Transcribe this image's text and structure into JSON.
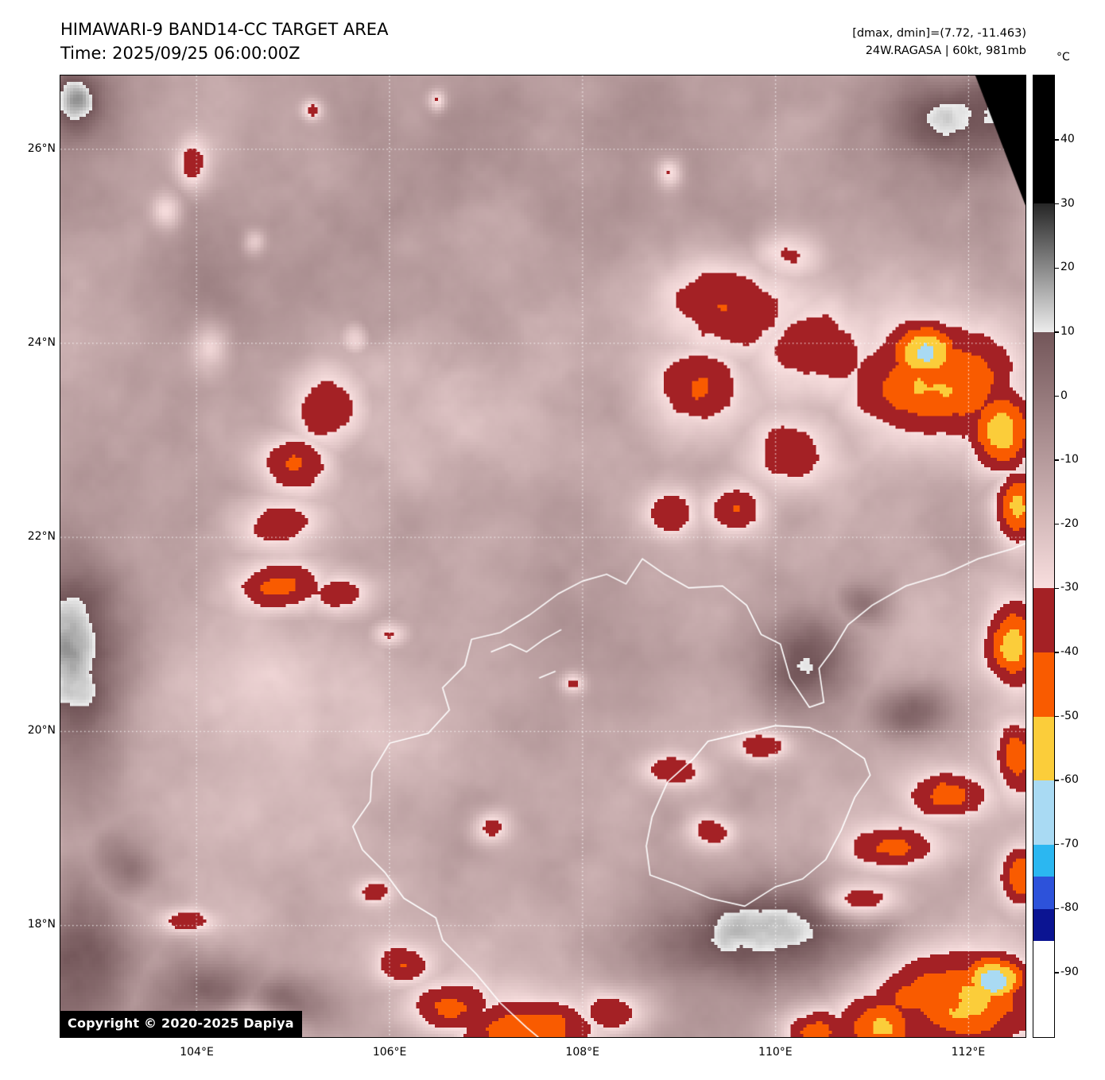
{
  "header": {
    "title": "HIMAWARI-9 BAND14-CC TARGET AREA",
    "time_line": "Time: 2025/09/25 06:00:00Z",
    "dmax_dmin": "[dmax, dmin]=(7.72, -11.463)",
    "storm_info": "24W.RAGASA | 60kt, 981mb"
  },
  "colorbar": {
    "unit": "°C",
    "domain": [
      50,
      -100
    ],
    "ticks": [
      {
        "v": 40,
        "label": "40"
      },
      {
        "v": 30,
        "label": "30"
      },
      {
        "v": 20,
        "label": "20"
      },
      {
        "v": 10,
        "label": "10"
      },
      {
        "v": 0,
        "label": "0"
      },
      {
        "v": -10,
        "label": "-10"
      },
      {
        "v": -20,
        "label": "-20"
      },
      {
        "v": -30,
        "label": "-30"
      },
      {
        "v": -40,
        "label": "-40"
      },
      {
        "v": -50,
        "label": "-50"
      },
      {
        "v": -60,
        "label": "-60"
      },
      {
        "v": -70,
        "label": "-70"
      },
      {
        "v": -80,
        "label": "-80"
      },
      {
        "v": -90,
        "label": "-90"
      }
    ],
    "segments": [
      {
        "from": 50,
        "to": 30,
        "c": [
          "#000000",
          "#000000"
        ]
      },
      {
        "from": 30,
        "to": 10,
        "c": [
          "#262626",
          "#ececec"
        ]
      },
      {
        "from": 10,
        "to": -30,
        "c": [
          "#735659",
          "#f8dede"
        ]
      },
      {
        "from": -30,
        "to": -40,
        "c": [
          "#a42125",
          "#a42125"
        ]
      },
      {
        "from": -40,
        "to": -50,
        "c": [
          "#f95b00",
          "#f95b00"
        ]
      },
      {
        "from": -50,
        "to": -60,
        "c": [
          "#fbcd3a",
          "#fbcd3a"
        ]
      },
      {
        "from": -60,
        "to": -70,
        "c": [
          "#a9daf3",
          "#a9daf3"
        ]
      },
      {
        "from": -70,
        "to": -75,
        "c": [
          "#2bb7f1",
          "#2bb7f1"
        ]
      },
      {
        "from": -75,
        "to": -80,
        "c": [
          "#2d52da",
          "#2d52da"
        ]
      },
      {
        "from": -80,
        "to": -85,
        "c": [
          "#0b1492",
          "#0b1492"
        ]
      },
      {
        "from": -85,
        "to": -100,
        "c": [
          "#ffffff",
          "#ffffff"
        ]
      }
    ]
  },
  "map": {
    "extent": {
      "lon_min": 102.59,
      "lon_max": 112.59,
      "lat_min": 16.85,
      "lat_max": 26.76
    },
    "lat_ticks": [
      {
        "v": 26,
        "label": "26°N"
      },
      {
        "v": 24,
        "label": "24°N"
      },
      {
        "v": 22,
        "label": "22°N"
      },
      {
        "v": 20,
        "label": "20°N"
      },
      {
        "v": 18,
        "label": "18°N"
      }
    ],
    "lon_ticks": [
      {
        "v": 104,
        "label": "104°E"
      },
      {
        "v": 106,
        "label": "106°E"
      },
      {
        "v": 108,
        "label": "108°E"
      },
      {
        "v": 110,
        "label": "110°E"
      },
      {
        "v": 112,
        "label": "112°E"
      }
    ],
    "copyright": "Copyright © 2020-2025 Dapiya"
  },
  "field": {
    "base": -12,
    "noise": [
      [
        0.42,
        9,
        1
      ],
      [
        1.0,
        5.5,
        2
      ],
      [
        2.6,
        3.5,
        3
      ]
    ],
    "features": [
      [
        105.35,
        23.35,
        0.55,
        0.5,
        -29
      ],
      [
        105.0,
        22.75,
        0.5,
        0.42,
        -27
      ],
      [
        104.85,
        22.15,
        0.5,
        0.35,
        -26
      ],
      [
        104.85,
        21.5,
        0.6,
        0.3,
        -29
      ],
      [
        105.5,
        21.42,
        0.4,
        0.25,
        -25
      ],
      [
        104.15,
        23.95,
        0.22,
        0.3,
        -22
      ],
      [
        105.65,
        24.05,
        0.18,
        0.2,
        -20
      ],
      [
        103.95,
        25.85,
        0.2,
        0.28,
        -24
      ],
      [
        103.7,
        25.35,
        0.18,
        0.22,
        -22
      ],
      [
        104.6,
        25.05,
        0.13,
        0.15,
        -19
      ],
      [
        105.2,
        26.4,
        0.12,
        0.12,
        -20
      ],
      [
        106.5,
        26.5,
        0.1,
        0.12,
        -19
      ],
      [
        106.3,
        23.4,
        1.5,
        1.2,
        -13
      ],
      [
        104.8,
        20.4,
        1.6,
        0.9,
        -9
      ],
      [
        109.6,
        24.35,
        0.85,
        0.6,
        -28
      ],
      [
        109.2,
        23.55,
        0.6,
        0.5,
        -27
      ],
      [
        110.35,
        23.95,
        0.75,
        0.55,
        -25
      ],
      [
        110.2,
        22.85,
        0.5,
        0.45,
        -23
      ],
      [
        111.7,
        23.6,
        0.9,
        0.7,
        -38
      ],
      [
        111.55,
        23.9,
        0.42,
        0.33,
        -54
      ],
      [
        112.35,
        23.1,
        0.4,
        0.5,
        -40
      ],
      [
        112.5,
        22.3,
        0.28,
        0.45,
        -36
      ],
      [
        108.9,
        22.25,
        0.3,
        0.3,
        -22
      ],
      [
        109.6,
        22.3,
        0.35,
        0.3,
        -24
      ],
      [
        112.45,
        20.9,
        0.3,
        0.5,
        -38
      ],
      [
        112.5,
        19.7,
        0.22,
        0.4,
        -32
      ],
      [
        110.1,
        24.9,
        0.4,
        0.3,
        -24
      ],
      [
        108.9,
        25.75,
        0.15,
        0.18,
        -22
      ],
      [
        111.9,
        17.25,
        0.95,
        0.6,
        -40
      ],
      [
        112.25,
        17.45,
        0.4,
        0.3,
        -52
      ],
      [
        111.1,
        16.95,
        0.55,
        0.4,
        -34
      ],
      [
        110.4,
        16.9,
        0.45,
        0.3,
        -28
      ],
      [
        112.55,
        18.5,
        0.25,
        0.35,
        -30
      ],
      [
        111.25,
        18.8,
        0.5,
        0.25,
        -26
      ],
      [
        111.8,
        19.35,
        0.45,
        0.25,
        -30
      ],
      [
        110.85,
        18.25,
        0.45,
        0.22,
        -26
      ],
      [
        107.5,
        16.9,
        0.85,
        0.4,
        -32
      ],
      [
        106.6,
        17.15,
        0.5,
        0.3,
        -28
      ],
      [
        108.35,
        17.1,
        0.45,
        0.28,
        -26
      ],
      [
        106.15,
        17.6,
        0.35,
        0.25,
        -24
      ],
      [
        104.6,
        16.95,
        0.5,
        0.28,
        -27
      ],
      [
        103.9,
        18.05,
        0.3,
        0.14,
        -24
      ],
      [
        105.85,
        18.35,
        0.2,
        0.15,
        -20
      ],
      [
        107.05,
        19.0,
        0.22,
        0.2,
        -21
      ],
      [
        108.9,
        19.6,
        0.35,
        0.2,
        -24
      ],
      [
        109.35,
        18.95,
        0.3,
        0.2,
        -23
      ],
      [
        109.85,
        19.85,
        0.35,
        0.18,
        -23
      ],
      [
        107.9,
        20.5,
        0.14,
        0.12,
        -22
      ],
      [
        106.0,
        21.0,
        0.2,
        0.14,
        -20
      ],
      [
        102.75,
        20.7,
        0.55,
        1.3,
        28
      ],
      [
        102.8,
        17.7,
        0.6,
        0.8,
        26
      ],
      [
        104.1,
        17.25,
        0.7,
        0.45,
        24
      ],
      [
        104.9,
        17.15,
        0.6,
        0.35,
        22
      ],
      [
        109.9,
        17.9,
        1.3,
        0.55,
        28
      ],
      [
        110.35,
        20.7,
        0.55,
        0.6,
        26
      ],
      [
        111.4,
        20.2,
        0.5,
        0.35,
        20
      ],
      [
        111.9,
        26.3,
        0.9,
        0.55,
        24
      ],
      [
        102.75,
        26.5,
        0.3,
        0.35,
        26
      ],
      [
        103.3,
        18.6,
        0.4,
        0.4,
        18
      ],
      [
        110.9,
        21.3,
        0.3,
        0.25,
        16
      ]
    ]
  },
  "coastlines": [
    [
      [
        108.0,
        21.55
      ],
      [
        108.25,
        21.62
      ],
      [
        108.45,
        21.52
      ],
      [
        108.62,
        21.78
      ],
      [
        108.85,
        21.62
      ],
      [
        109.1,
        21.48
      ],
      [
        109.45,
        21.5
      ],
      [
        109.7,
        21.3
      ],
      [
        109.85,
        21.0
      ],
      [
        110.05,
        20.9
      ],
      [
        110.15,
        20.55
      ],
      [
        110.35,
        20.25
      ],
      [
        110.5,
        20.3
      ],
      [
        110.45,
        20.65
      ],
      [
        110.6,
        20.85
      ],
      [
        110.75,
        21.1
      ],
      [
        111.0,
        21.3
      ],
      [
        111.35,
        21.5
      ],
      [
        111.75,
        21.62
      ],
      [
        112.1,
        21.78
      ],
      [
        112.45,
        21.88
      ],
      [
        112.62,
        21.95
      ]
    ],
    [
      [
        108.0,
        21.55
      ],
      [
        107.75,
        21.42
      ],
      [
        107.45,
        21.2
      ],
      [
        107.15,
        21.02
      ],
      [
        106.85,
        20.95
      ],
      [
        106.78,
        20.68
      ],
      [
        106.55,
        20.45
      ],
      [
        106.62,
        20.22
      ],
      [
        106.4,
        19.98
      ],
      [
        106.0,
        19.88
      ],
      [
        105.82,
        19.58
      ],
      [
        105.8,
        19.28
      ],
      [
        105.62,
        19.02
      ],
      [
        105.72,
        18.78
      ],
      [
        105.95,
        18.55
      ],
      [
        106.15,
        18.28
      ],
      [
        106.48,
        18.08
      ],
      [
        106.55,
        17.85
      ],
      [
        106.9,
        17.5
      ],
      [
        107.15,
        17.2
      ],
      [
        107.42,
        16.95
      ],
      [
        107.6,
        16.8
      ]
    ],
    [
      [
        110.0,
        20.06
      ],
      [
        110.35,
        20.04
      ],
      [
        110.62,
        19.92
      ],
      [
        110.92,
        19.72
      ],
      [
        110.98,
        19.55
      ],
      [
        110.82,
        19.32
      ],
      [
        110.68,
        18.98
      ],
      [
        110.52,
        18.68
      ],
      [
        110.28,
        18.48
      ],
      [
        110.0,
        18.4
      ],
      [
        109.68,
        18.2
      ],
      [
        109.32,
        18.28
      ],
      [
        108.98,
        18.42
      ],
      [
        108.7,
        18.52
      ],
      [
        108.66,
        18.82
      ],
      [
        108.72,
        19.12
      ],
      [
        108.88,
        19.48
      ],
      [
        109.15,
        19.72
      ],
      [
        109.3,
        19.9
      ],
      [
        109.65,
        19.98
      ],
      [
        110.0,
        20.06
      ]
    ],
    [
      [
        107.05,
        20.82
      ],
      [
        107.25,
        20.9
      ],
      [
        107.42,
        20.82
      ],
      [
        107.6,
        20.95
      ],
      [
        107.78,
        21.05
      ]
    ],
    [
      [
        107.55,
        20.55
      ],
      [
        107.72,
        20.62
      ]
    ]
  ],
  "no_data_wedge": [
    [
      112.07,
      26.76
    ],
    [
      112.59,
      26.76
    ],
    [
      112.59,
      25.42
    ]
  ]
}
